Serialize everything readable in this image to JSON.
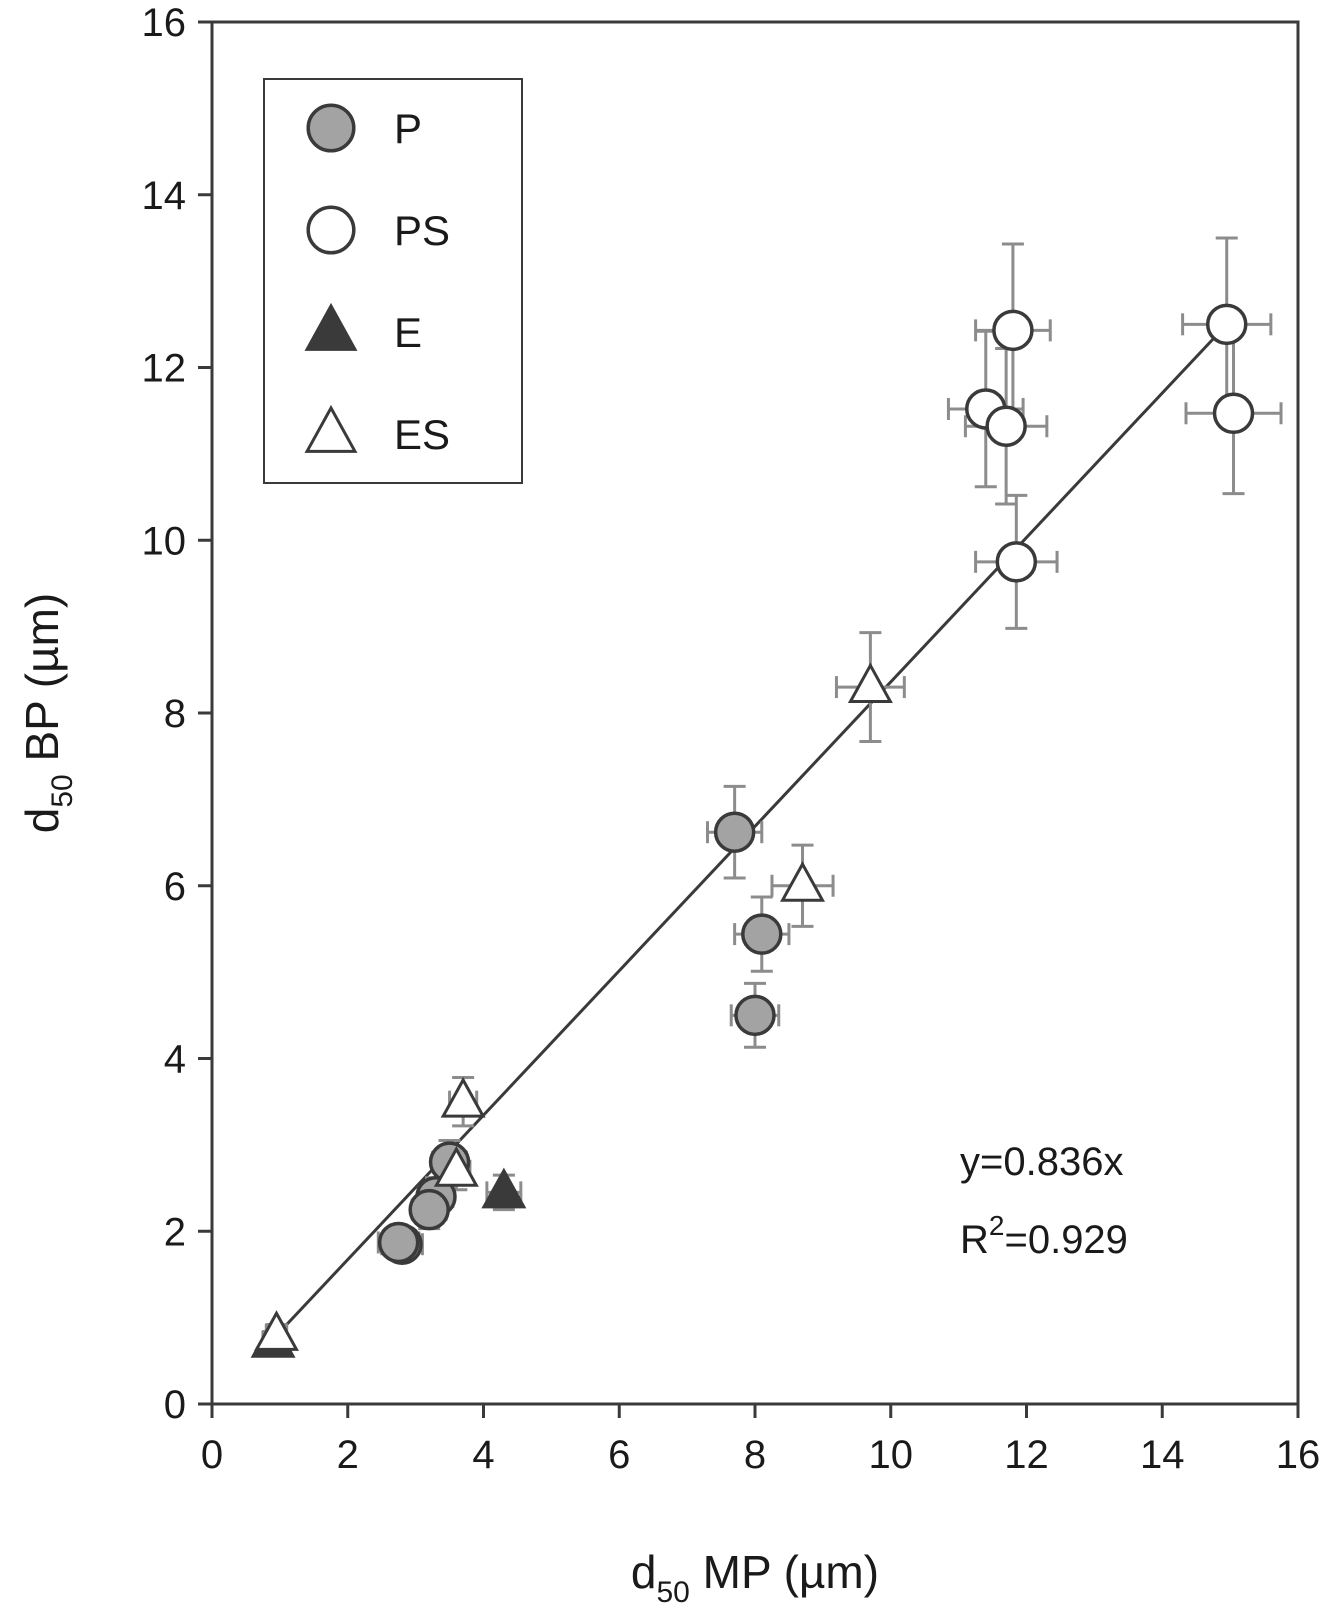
{
  "chart_data": {
    "type": "scatter",
    "xlabel": {
      "main": "d",
      "sub": "50",
      "rest": " MP (µm)"
    },
    "ylabel": {
      "main": "d",
      "sub": "50",
      "rest": " BP (µm)"
    },
    "xlim": [
      0,
      16
    ],
    "ylim": [
      0,
      16
    ],
    "xticks": [
      "0",
      "2",
      "4",
      "6",
      "8",
      "10",
      "12",
      "14",
      "16"
    ],
    "yticks": [
      "0",
      "2",
      "4",
      "6",
      "8",
      "10",
      "12",
      "14",
      "16"
    ],
    "grid": false,
    "legend_position": "top-left",
    "fit": {
      "slope": 0.836,
      "x_range": [
        0.9,
        14.95
      ]
    },
    "annotations": {
      "equation": "y=0.836x",
      "r2_prefix": "R",
      "r2_sup": "2",
      "r2_value": "=0.929"
    },
    "colors": {
      "axis": "#3a3a3a",
      "errorbar": "#8c8c8c",
      "filled_circle": "#a3a3a3",
      "filled_triangle": "#3a3a3a",
      "marker_edge": "#3a3a3a",
      "fit_line": "#3a3a3a"
    },
    "series": [
      {
        "name": "P",
        "marker": "circle-filled",
        "points": [
          {
            "x": 7.7,
            "y": 6.62,
            "xerr": 0.4,
            "yerr": 0.53
          },
          {
            "x": 8.1,
            "y": 5.44,
            "xerr": 0.4,
            "yerr": 0.43
          },
          {
            "x": 8.0,
            "y": 4.5,
            "xerr": 0.35,
            "yerr": 0.37
          },
          {
            "x": 3.5,
            "y": 2.8,
            "xerr": 0.25,
            "yerr": 0.25
          },
          {
            "x": 3.3,
            "y": 2.4,
            "xerr": 0.25,
            "yerr": 0.22
          },
          {
            "x": 3.2,
            "y": 2.25,
            "xerr": 0.25,
            "yerr": 0.22
          },
          {
            "x": 2.8,
            "y": 1.85,
            "xerr": 0.3,
            "yerr": 0.18
          },
          {
            "x": 2.75,
            "y": 1.87,
            "xerr": 0.3,
            "yerr": 0.18
          }
        ]
      },
      {
        "name": "PS",
        "marker": "circle-open",
        "points": [
          {
            "x": 11.8,
            "y": 12.43,
            "xerr": 0.55,
            "yerr": 1.0
          },
          {
            "x": 14.95,
            "y": 12.5,
            "xerr": 0.65,
            "yerr": 1.0
          },
          {
            "x": 11.4,
            "y": 11.52,
            "xerr": 0.55,
            "yerr": 0.9
          },
          {
            "x": 11.7,
            "y": 11.32,
            "xerr": 0.6,
            "yerr": 0.9
          },
          {
            "x": 15.05,
            "y": 11.47,
            "xerr": 0.7,
            "yerr": 0.93
          },
          {
            "x": 11.85,
            "y": 9.75,
            "xerr": 0.6,
            "yerr": 0.77
          }
        ]
      },
      {
        "name": "E",
        "marker": "triangle-filled",
        "points": [
          {
            "x": 0.9,
            "y": 0.72,
            "xerr": 0.15,
            "yerr": 0.12
          },
          {
            "x": 4.3,
            "y": 2.45,
            "xerr": 0.25,
            "yerr": 0.2
          }
        ]
      },
      {
        "name": "ES",
        "marker": "triangle-open",
        "points": [
          {
            "x": 9.7,
            "y": 8.3,
            "xerr": 0.5,
            "yerr": 0.63
          },
          {
            "x": 8.7,
            "y": 6.0,
            "xerr": 0.45,
            "yerr": 0.47
          },
          {
            "x": 3.7,
            "y": 3.5,
            "xerr": 0.2,
            "yerr": 0.28
          },
          {
            "x": 3.6,
            "y": 2.7,
            "xerr": 0.2,
            "yerr": 0.22
          },
          {
            "x": 0.95,
            "y": 0.8,
            "xerr": 0.15,
            "yerr": 0.12
          }
        ]
      }
    ]
  }
}
